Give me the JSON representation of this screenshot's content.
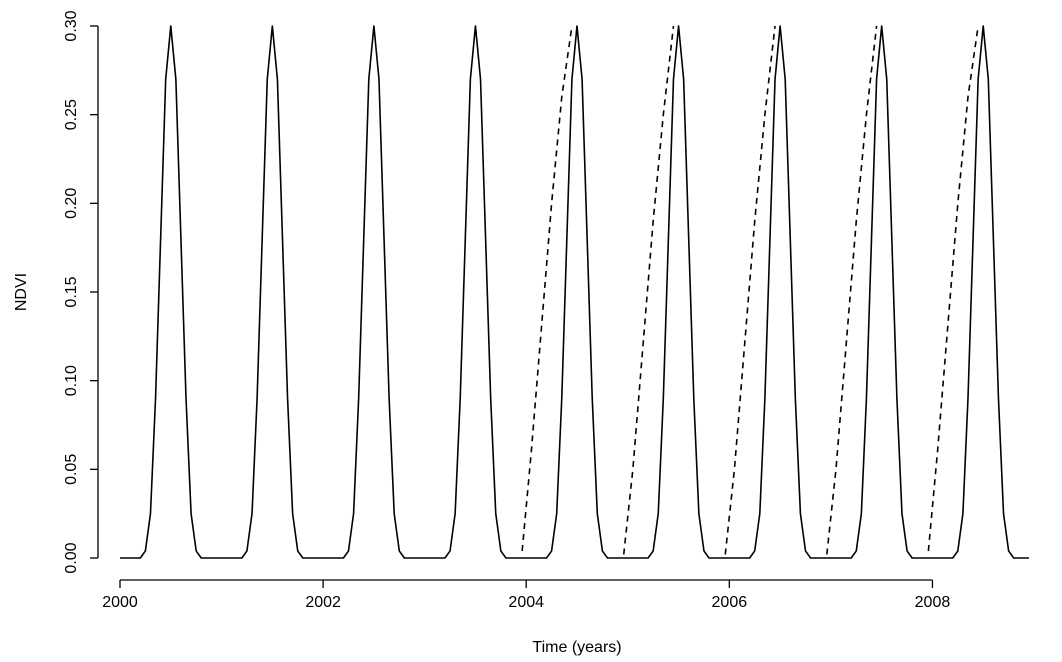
{
  "chart_data": {
    "type": "line",
    "title": "",
    "xlabel": "Time (years)",
    "ylabel": "NDVI",
    "xlim": [
      2000,
      2009
    ],
    "ylim": [
      0,
      0.3
    ],
    "x_ticks": [
      2000,
      2002,
      2004,
      2006,
      2008
    ],
    "x_tick_labels": [
      "2000",
      "2002",
      "2004",
      "2006",
      "2008"
    ],
    "y_ticks": [
      0,
      0.05,
      0.1,
      0.15,
      0.2,
      0.25,
      0.3
    ],
    "y_tick_labels": [
      "0.00",
      "0.05",
      "0.10",
      "0.15",
      "0.20",
      "0.25",
      "0.30"
    ],
    "grid": false,
    "legend": "none",
    "series": [
      {
        "style": "solid",
        "x": [
          2000.0,
          2000.2,
          2000.25,
          2000.3,
          2000.35,
          2000.4,
          2000.45,
          2000.5,
          2000.55,
          2000.6,
          2000.65,
          2000.7,
          2000.75,
          2000.8,
          2001.0,
          2001.2,
          2001.25,
          2001.3,
          2001.35,
          2001.4,
          2001.45,
          2001.5,
          2001.55,
          2001.6,
          2001.65,
          2001.7,
          2001.75,
          2001.8,
          2002.0,
          2002.2,
          2002.25,
          2002.3,
          2002.35,
          2002.4,
          2002.45,
          2002.5,
          2002.55,
          2002.6,
          2002.65,
          2002.7,
          2002.75,
          2002.8,
          2003.0,
          2003.2,
          2003.25,
          2003.3,
          2003.35,
          2003.4,
          2003.45,
          2003.5,
          2003.55,
          2003.6,
          2003.65,
          2003.7,
          2003.75,
          2003.8,
          2004.0,
          2004.2,
          2004.25,
          2004.3,
          2004.35,
          2004.4,
          2004.45,
          2004.5,
          2004.55,
          2004.6,
          2004.65,
          2004.7,
          2004.75,
          2004.8,
          2005.0,
          2005.2,
          2005.25,
          2005.3,
          2005.35,
          2005.4,
          2005.45,
          2005.5,
          2005.55,
          2005.6,
          2005.65,
          2005.7,
          2005.75,
          2005.8,
          2006.0,
          2006.2,
          2006.25,
          2006.3,
          2006.35,
          2006.4,
          2006.45,
          2006.5,
          2006.55,
          2006.6,
          2006.65,
          2006.7,
          2006.75,
          2006.8,
          2007.0,
          2007.2,
          2007.25,
          2007.3,
          2007.35,
          2007.4,
          2007.45,
          2007.5,
          2007.55,
          2007.6,
          2007.65,
          2007.7,
          2007.75,
          2007.8,
          2008.0,
          2008.2,
          2008.25,
          2008.3,
          2008.35,
          2008.4,
          2008.45,
          2008.5,
          2008.55,
          2008.6,
          2008.65,
          2008.7,
          2008.75,
          2008.8,
          2008.95
        ],
        "y": [
          0.0,
          0.0,
          0.004,
          0.025,
          0.09,
          0.18,
          0.27,
          0.3,
          0.27,
          0.18,
          0.09,
          0.025,
          0.004,
          0.0,
          0.0,
          0.0,
          0.004,
          0.025,
          0.09,
          0.18,
          0.27,
          0.3,
          0.27,
          0.18,
          0.09,
          0.025,
          0.004,
          0.0,
          0.0,
          0.0,
          0.004,
          0.025,
          0.09,
          0.18,
          0.27,
          0.3,
          0.27,
          0.18,
          0.09,
          0.025,
          0.004,
          0.0,
          0.0,
          0.0,
          0.004,
          0.025,
          0.09,
          0.18,
          0.27,
          0.3,
          0.27,
          0.18,
          0.09,
          0.025,
          0.004,
          0.0,
          0.0,
          0.0,
          0.004,
          0.025,
          0.09,
          0.18,
          0.27,
          0.3,
          0.27,
          0.18,
          0.09,
          0.025,
          0.004,
          0.0,
          0.0,
          0.0,
          0.004,
          0.025,
          0.09,
          0.18,
          0.27,
          0.3,
          0.27,
          0.18,
          0.09,
          0.025,
          0.004,
          0.0,
          0.0,
          0.0,
          0.004,
          0.025,
          0.09,
          0.18,
          0.27,
          0.3,
          0.27,
          0.18,
          0.09,
          0.025,
          0.004,
          0.0,
          0.0,
          0.0,
          0.004,
          0.025,
          0.09,
          0.18,
          0.27,
          0.3,
          0.27,
          0.18,
          0.09,
          0.025,
          0.004,
          0.0,
          0.0,
          0.0,
          0.004,
          0.025,
          0.09,
          0.18,
          0.27,
          0.3,
          0.27,
          0.18,
          0.09,
          0.025,
          0.004,
          0.0,
          0.0
        ]
      },
      {
        "style": "dashed",
        "segments": [
          {
            "x": [
              2003.96,
              2004.05,
              2004.15,
              2004.25,
              2004.35,
              2004.45
            ],
            "y": [
              0.004,
              0.06,
              0.13,
              0.2,
              0.26,
              0.3
            ]
          },
          {
            "x": [
              2004.96,
              2005.05,
              2005.15,
              2005.25,
              2005.35,
              2005.45
            ],
            "y": [
              0.002,
              0.05,
              0.12,
              0.19,
              0.25,
              0.3
            ]
          },
          {
            "x": [
              2005.96,
              2006.05,
              2006.15,
              2006.25,
              2006.35,
              2006.45
            ],
            "y": [
              0.002,
              0.05,
              0.12,
              0.19,
              0.25,
              0.3
            ]
          },
          {
            "x": [
              2006.96,
              2007.05,
              2007.15,
              2007.25,
              2007.35,
              2007.45
            ],
            "y": [
              0.002,
              0.05,
              0.12,
              0.19,
              0.25,
              0.3
            ]
          },
          {
            "x": [
              2007.96,
              2008.05,
              2008.15,
              2008.25,
              2008.35,
              2008.45
            ],
            "y": [
              0.004,
              0.06,
              0.13,
              0.2,
              0.26,
              0.3
            ]
          }
        ]
      }
    ]
  }
}
